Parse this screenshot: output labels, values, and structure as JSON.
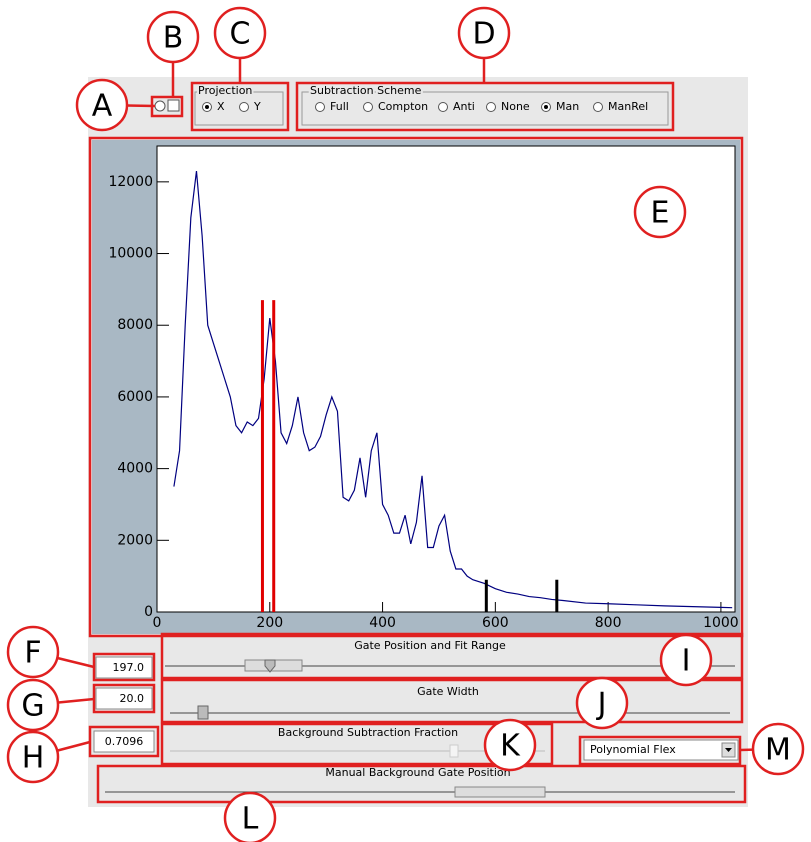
{
  "annotations": [
    "A",
    "B",
    "C",
    "D",
    "E",
    "F",
    "G",
    "H",
    "I",
    "J",
    "K",
    "L",
    "M"
  ],
  "projection": {
    "title": "Projection",
    "options": [
      "X",
      "Y"
    ],
    "selected": 0
  },
  "subtraction": {
    "title": "Subtraction Scheme",
    "options": [
      "Full",
      "Compton",
      "Anti",
      "None",
      "Man",
      "ManRel"
    ],
    "selected": 4
  },
  "fields": {
    "gate_position": "197.0",
    "gate_width": "20.0",
    "fraction": "0.7096"
  },
  "sliders": {
    "gate_position": "Gate Position and Fit Range",
    "gate_width": "Gate Width",
    "fraction": "Background Subtraction Fraction",
    "manual_background": "Manual Background Gate Position"
  },
  "dropdown": "Polynomial Flex",
  "chart_data": {
    "type": "line",
    "color": "#000080",
    "x": [
      30,
      40,
      50,
      60,
      70,
      80,
      90,
      100,
      110,
      120,
      130,
      140,
      150,
      160,
      170,
      180,
      190,
      200,
      210,
      220,
      230,
      240,
      250,
      260,
      270,
      280,
      290,
      300,
      310,
      320,
      330,
      340,
      350,
      360,
      370,
      380,
      390,
      400,
      410,
      420,
      430,
      440,
      450,
      460,
      470,
      480,
      490,
      500,
      510,
      520,
      530,
      540,
      550,
      560,
      580,
      600,
      620,
      640,
      660,
      680,
      700,
      720,
      760,
      800,
      850,
      900,
      950,
      1000,
      1020
    ],
    "values": [
      3500,
      4500,
      8000,
      11000,
      12300,
      10500,
      8000,
      7500,
      7000,
      6500,
      6000,
      5200,
      5000,
      5300,
      5200,
      5400,
      6500,
      8200,
      7000,
      5000,
      4700,
      5200,
      6000,
      5000,
      4500,
      4600,
      4900,
      5500,
      6000,
      5600,
      3200,
      3100,
      3400,
      4300,
      3200,
      4500,
      5000,
      3000,
      2700,
      2200,
      2200,
      2700,
      1900,
      2500,
      3800,
      1800,
      1800,
      2400,
      2700,
      1700,
      1200,
      1200,
      1000,
      900,
      800,
      650,
      550,
      500,
      430,
      400,
      350,
      320,
      250,
      230,
      200,
      170,
      150,
      130,
      120
    ],
    "gate_x": [
      187,
      207
    ],
    "gate_color": "#e00000",
    "background_gate_x": [
      584,
      709
    ],
    "background_gate_color": "#000000",
    "xlim": [
      0,
      1025
    ],
    "ylim": [
      0,
      13000
    ],
    "xticks": [
      0,
      200,
      400,
      600,
      800,
      1000
    ],
    "yticks": [
      0,
      2000,
      4000,
      6000,
      8000,
      10000,
      12000
    ]
  }
}
